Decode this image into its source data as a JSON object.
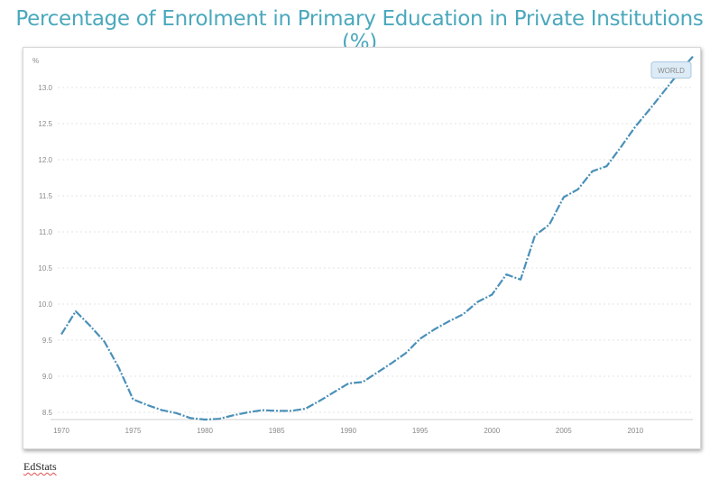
{
  "title": "Percentage of Enrolment in Primary Education in Private Institutions (%)",
  "source": "EdStats",
  "chart_data": {
    "type": "line",
    "title": "Percentage of Enrolment in Primary Education in Private Institutions (%)",
    "ylabel": "%",
    "xlabel": "",
    "xlim": [
      1970,
      2014
    ],
    "ylim": [
      8.4,
      13.4
    ],
    "x_ticks": [
      1970,
      1975,
      1980,
      1985,
      1990,
      1995,
      2000,
      2005,
      2010
    ],
    "y_ticks": [
      8.5,
      9.0,
      9.5,
      10.0,
      10.5,
      11.0,
      11.5,
      12.0,
      12.5,
      13.0
    ],
    "y_tick_labels": [
      "8.5",
      "9.0",
      "9.5",
      "10.0",
      "10.5",
      "11.0",
      "11.5",
      "12.0",
      "12.5",
      "13.0"
    ],
    "grid": "horizontal dashed",
    "series": [
      {
        "name": "WORLD",
        "color": "#4a90b8",
        "x": [
          1970,
          1971,
          1972,
          1973,
          1974,
          1975,
          1976,
          1977,
          1978,
          1979,
          1980,
          1981,
          1982,
          1983,
          1984,
          1985,
          1986,
          1987,
          1988,
          1989,
          1990,
          1991,
          1992,
          1993,
          1994,
          1995,
          1996,
          1997,
          1998,
          1999,
          2000,
          2001,
          2002,
          2003,
          2004,
          2005,
          2006,
          2007,
          2008,
          2009,
          2010,
          2011,
          2012,
          2013,
          2014
        ],
        "y": [
          9.58,
          9.9,
          9.7,
          9.48,
          9.12,
          8.68,
          8.6,
          8.53,
          8.49,
          8.42,
          8.4,
          8.41,
          8.46,
          8.5,
          8.53,
          8.52,
          8.52,
          8.55,
          8.66,
          8.78,
          8.9,
          8.92,
          9.05,
          9.18,
          9.32,
          9.52,
          9.65,
          9.76,
          9.86,
          10.03,
          10.13,
          10.41,
          10.34,
          10.95,
          11.1,
          11.48,
          11.59,
          11.84,
          11.91,
          12.18,
          12.46,
          12.7,
          12.95,
          13.2,
          13.43
        ]
      }
    ]
  }
}
